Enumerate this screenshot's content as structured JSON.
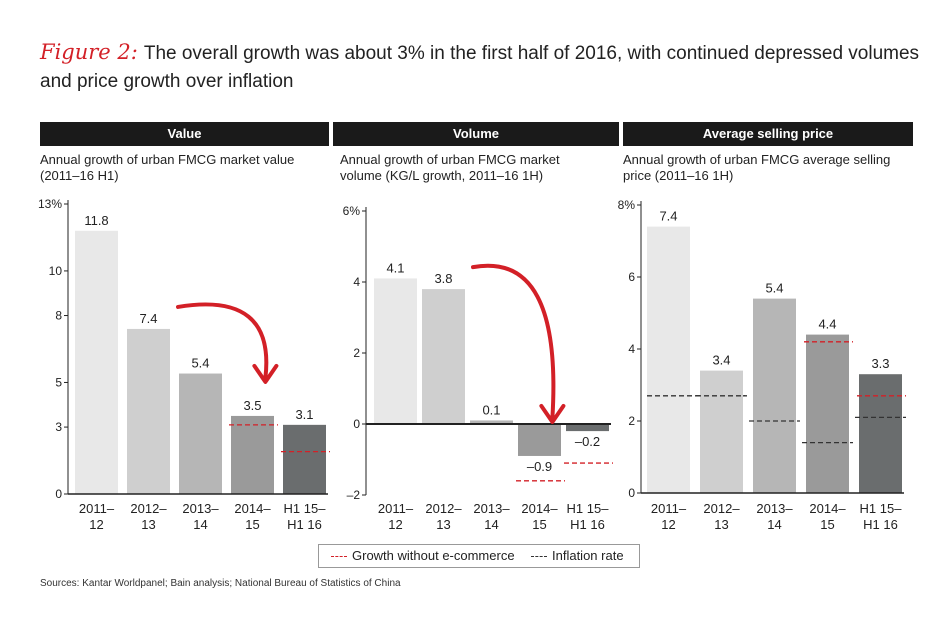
{
  "title": {
    "figure_label": "Figure 2:",
    "text": "The overall growth was about 3% in the first half of 2016, with continued depressed volumes and price growth over inflation"
  },
  "legend": {
    "growth_without_ecommerce": "Growth without e-commerce",
    "inflation_rate": "Inflation rate"
  },
  "source": "Sources: Kantar Worldpanel; Bain analysis; National Bureau of Statistics of China",
  "colors": {
    "header_bg": "#1a1a1a",
    "accent_red": "#d32027",
    "inflation_dash": "#333333",
    "bars": [
      "#e8e8e8",
      "#cfcfcf",
      "#b6b6b6",
      "#9a9a9a",
      "#6a6d6e"
    ]
  },
  "chart_data": [
    {
      "type": "bar",
      "panel": "Value",
      "subtitle_lines": [
        "Annual growth of urban FMCG market value",
        "(2011–16 H1)"
      ],
      "categories": [
        [
          "2011–",
          "12"
        ],
        [
          "2012–",
          "13"
        ],
        [
          "2013–",
          "14"
        ],
        [
          "2014–",
          "15"
        ],
        [
          "H1 15–",
          "H1 16"
        ]
      ],
      "values": [
        11.8,
        7.4,
        5.4,
        3.5,
        3.1
      ],
      "value_labels": [
        "11.8",
        "7.4",
        "5.4",
        "3.5",
        "3.1"
      ],
      "growth_without_ecommerce": [
        null,
        null,
        null,
        3.1,
        1.9
      ],
      "inflation_rate": [
        null,
        null,
        null,
        null,
        null
      ],
      "ylim": [
        0,
        13
      ],
      "yticks": [
        0,
        3,
        5,
        8,
        10,
        13
      ],
      "ytick_labels": [
        "0",
        "3",
        "5",
        "8",
        "10",
        "13%"
      ],
      "arrow": {
        "from": "2012–13",
        "to": "2014–15"
      }
    },
    {
      "type": "bar",
      "panel": "Volume",
      "subtitle_lines": [
        "Annual growth of urban FMCG market",
        "volume (KG/L growth, 2011–16 1H)"
      ],
      "categories": [
        [
          "2011–",
          "12"
        ],
        [
          "2012–",
          "13"
        ],
        [
          "2013–",
          "14"
        ],
        [
          "2014–",
          "15"
        ],
        [
          "H1 15–",
          "H1 16"
        ]
      ],
      "values": [
        4.1,
        3.8,
        0.1,
        -0.9,
        -0.2
      ],
      "value_labels": [
        "4.1",
        "3.8",
        "0.1",
        "–0.9",
        "–0.2"
      ],
      "growth_without_ecommerce": [
        null,
        null,
        null,
        -1.6,
        -1.1
      ],
      "inflation_rate": [
        null,
        null,
        null,
        null,
        null
      ],
      "ylim": [
        -2,
        6
      ],
      "yticks": [
        -2,
        0,
        2,
        4,
        6
      ],
      "ytick_labels": [
        "–2",
        "0",
        "2",
        "4",
        "6%"
      ],
      "arrow": {
        "from": "2012–13",
        "to": "2014–15"
      }
    },
    {
      "type": "bar",
      "panel": "Average selling price",
      "subtitle_lines": [
        "Annual growth of urban FMCG average selling",
        "price (2011–16 1H)"
      ],
      "categories": [
        [
          "2011–",
          "12"
        ],
        [
          "2012–",
          "13"
        ],
        [
          "2013–",
          "14"
        ],
        [
          "2014–",
          "15"
        ],
        [
          "H1 15–",
          "H1 16"
        ]
      ],
      "values": [
        7.4,
        3.4,
        5.4,
        4.4,
        3.3
      ],
      "value_labels": [
        "7.4",
        "3.4",
        "5.4",
        "4.4",
        "3.3"
      ],
      "growth_without_ecommerce": [
        null,
        null,
        null,
        4.2,
        2.7
      ],
      "inflation_rate": [
        2.7,
        2.7,
        2.0,
        1.4,
        2.1
      ],
      "ylim": [
        0,
        8
      ],
      "yticks": [
        0,
        2,
        4,
        6,
        8
      ],
      "ytick_labels": [
        "0",
        "2",
        "4",
        "6",
        "8%"
      ],
      "arrow": null
    }
  ]
}
